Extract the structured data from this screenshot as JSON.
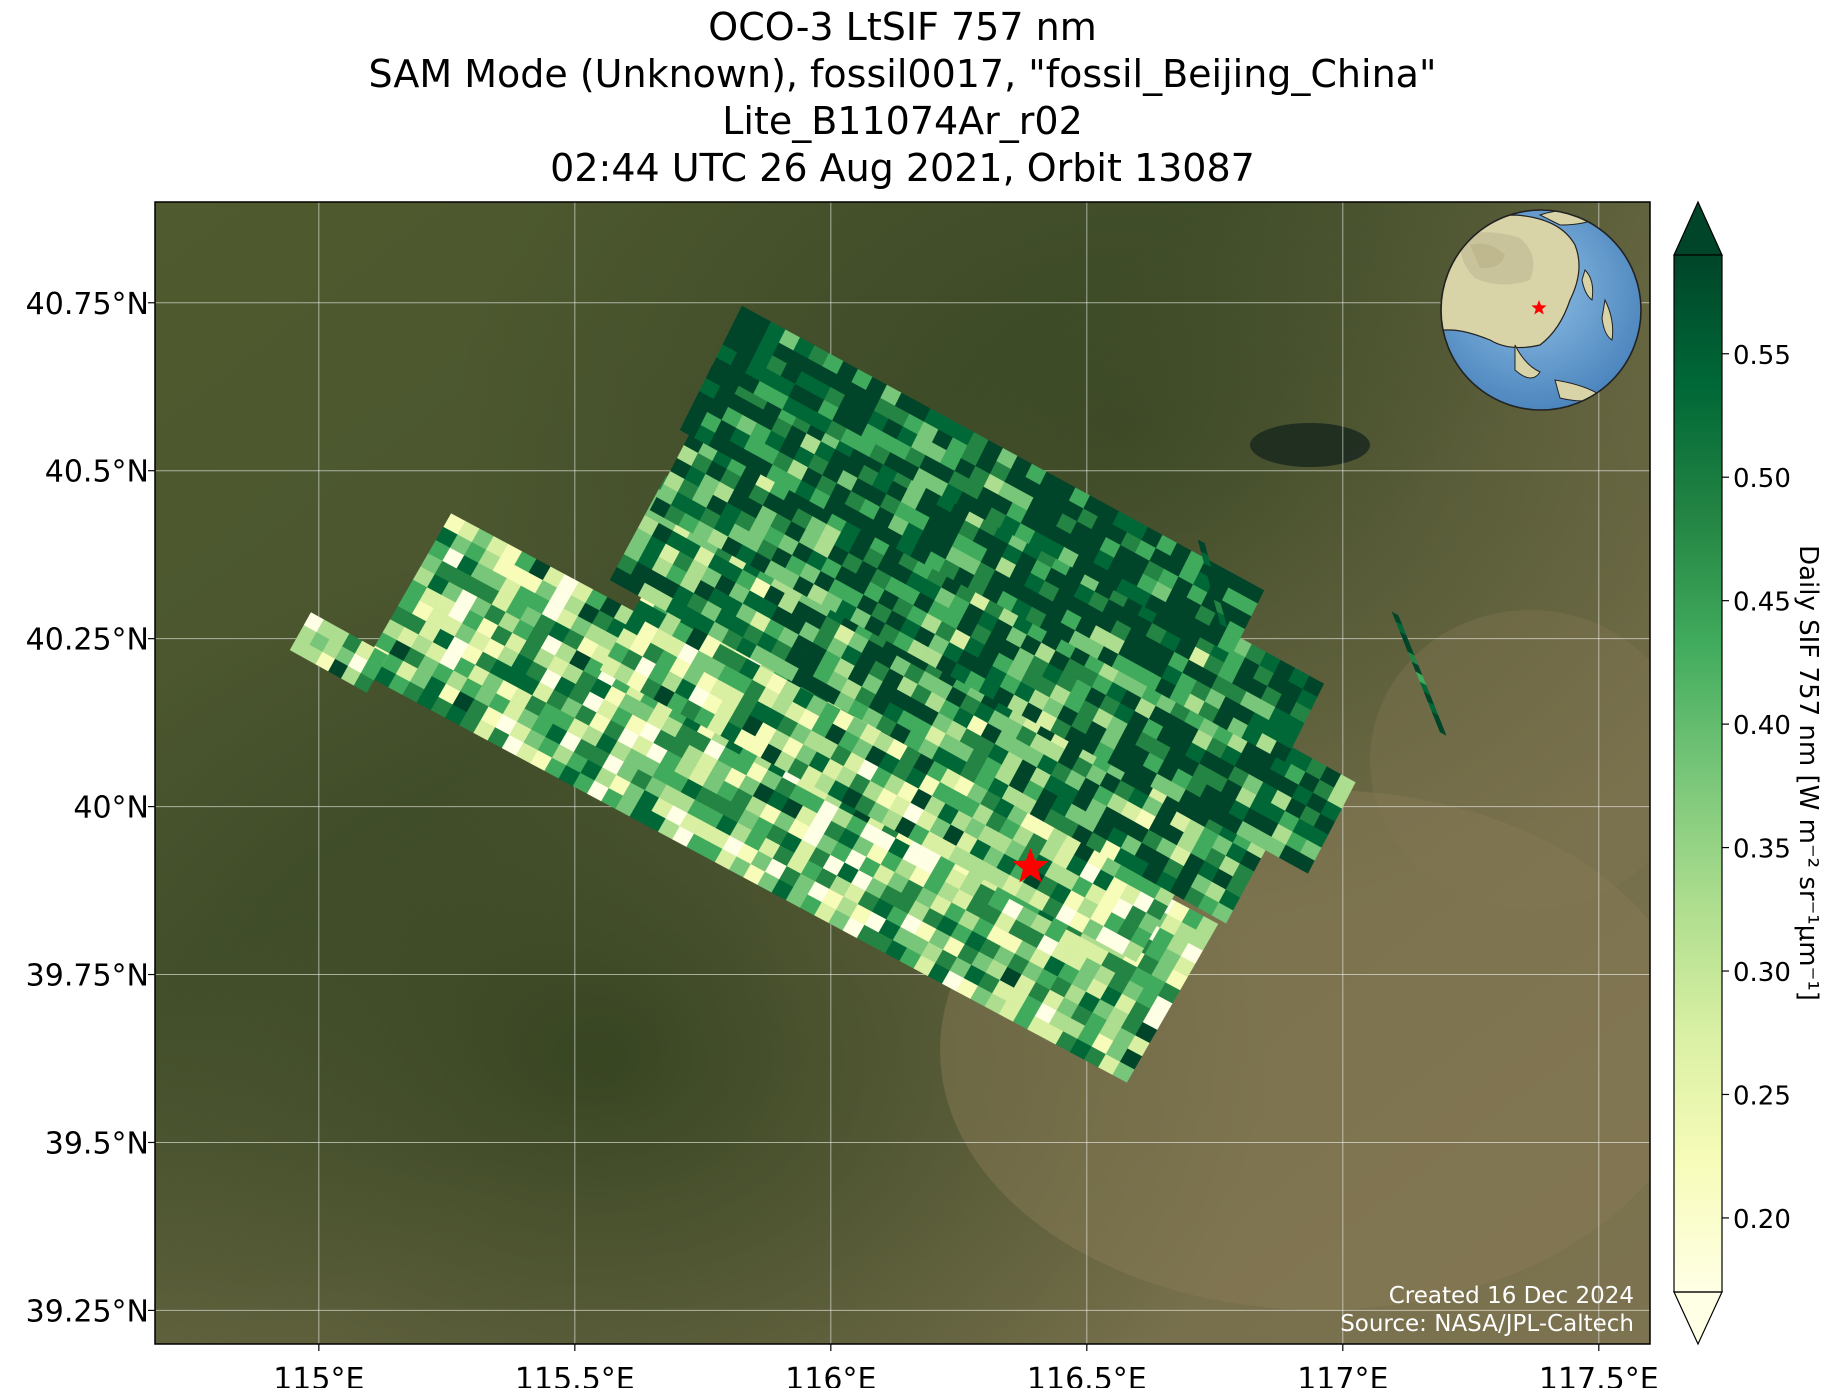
{
  "title": {
    "line1": "OCO-3 LtSIF 757 nm",
    "line2": "SAM Mode (Unknown), fossil0017, \"fossil_Beijing_China\"",
    "line3": "Lite_B11074Ar_r02",
    "line4": "02:44 UTC 26 Aug 2021, Orbit 13087"
  },
  "map": {
    "lon_range": [
      114.68,
      117.6
    ],
    "lat_range": [
      39.2,
      40.9
    ],
    "lon_ticks": [
      {
        "value": 115.0,
        "label": "115°E"
      },
      {
        "value": 115.5,
        "label": "115.5°E"
      },
      {
        "value": 116.0,
        "label": "116°E"
      },
      {
        "value": 116.5,
        "label": "116.5°E"
      },
      {
        "value": 117.0,
        "label": "117°E"
      },
      {
        "value": 117.5,
        "label": "117.5°E"
      }
    ],
    "lat_ticks": [
      {
        "value": 40.75,
        "label": "40.75°N"
      },
      {
        "value": 40.5,
        "label": "40.5°N"
      },
      {
        "value": 40.25,
        "label": "40.25°N"
      },
      {
        "value": 40.0,
        "label": "40°N"
      },
      {
        "value": 39.75,
        "label": "39.75°N"
      },
      {
        "value": 39.5,
        "label": "39.5°N"
      },
      {
        "value": 39.25,
        "label": "39.25°N"
      }
    ],
    "target_marker": {
      "lon": 116.39,
      "lat": 39.91,
      "symbol": "star",
      "color": "#ff0000"
    },
    "basemap": "satellite imagery (mountains northwest, plain southeast)",
    "inset_globe": {
      "center": "East Asia",
      "marker_color": "#ff0000"
    }
  },
  "colorbar": {
    "label": "Daily SIF 757 nm [W m⁻² sr⁻¹μm⁻¹]",
    "colormap": "YlGn",
    "range": [
      0.17,
      0.59
    ],
    "extend": "both",
    "ticks": [
      "0.20",
      "0.25",
      "0.30",
      "0.35",
      "0.40",
      "0.45",
      "0.50",
      "0.55"
    ]
  },
  "credits": {
    "created": "Created 16 Dec 2024",
    "source": "Source: NASA/JPL-Caltech"
  }
}
